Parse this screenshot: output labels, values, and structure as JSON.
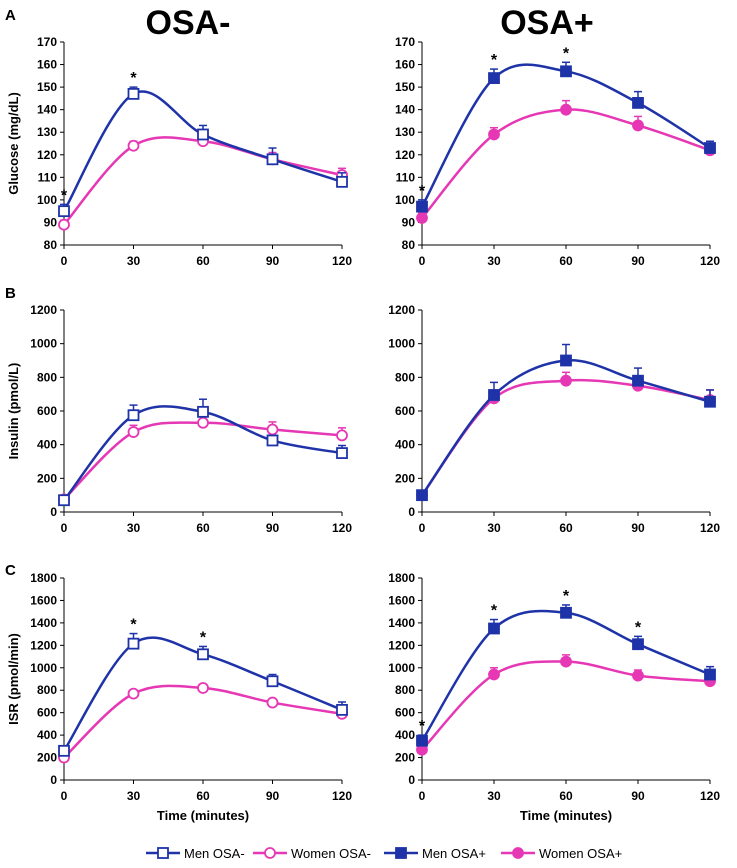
{
  "figure": {
    "column_titles": [
      "OSA-",
      "OSA+"
    ],
    "panel_letters": [
      "A",
      "B",
      "C"
    ]
  },
  "colors": {
    "men": "#1f33a8",
    "women": "#e637b4"
  },
  "legend": [
    {
      "label": "Men OSA-",
      "series": "men",
      "marker": "square",
      "filled": false
    },
    {
      "label": "Women OSA-",
      "series": "women",
      "marker": "circle",
      "filled": false
    },
    {
      "label": "Men OSA+",
      "series": "men",
      "marker": "square",
      "filled": true
    },
    {
      "label": "Women OSA+",
      "series": "women",
      "marker": "circle",
      "filled": true
    }
  ],
  "chart_data": [
    {
      "id": "glucose-osa-minus",
      "type": "line",
      "row": 0,
      "col": 0,
      "title": "OSA-",
      "xlabel": "",
      "ylabel": "Glucose (mg/dL)",
      "x": [
        0,
        30,
        60,
        90,
        120
      ],
      "xlim": [
        0,
        120
      ],
      "ylim": [
        80,
        170
      ],
      "yticks": [
        80,
        90,
        100,
        110,
        120,
        130,
        140,
        150,
        160,
        170
      ],
      "series": [
        {
          "name": "Men OSA-",
          "values": [
            95,
            147,
            129,
            118,
            108
          ],
          "errors": [
            3,
            3,
            4,
            5,
            4
          ],
          "marker": "square",
          "filled": false,
          "color": "#1f33a8"
        },
        {
          "name": "Women OSA-",
          "values": [
            89,
            124,
            126,
            118,
            111
          ],
          "errors": [
            2,
            2,
            3,
            3,
            3
          ],
          "marker": "circle",
          "filled": false,
          "color": "#e637b4"
        }
      ],
      "significance": [
        0,
        30
      ]
    },
    {
      "id": "glucose-osa-plus",
      "type": "line",
      "row": 0,
      "col": 1,
      "title": "OSA+",
      "xlabel": "",
      "ylabel": "",
      "x": [
        0,
        30,
        60,
        90,
        120
      ],
      "xlim": [
        0,
        120
      ],
      "ylim": [
        80,
        170
      ],
      "yticks": [
        80,
        90,
        100,
        110,
        120,
        130,
        140,
        150,
        160,
        170
      ],
      "series": [
        {
          "name": "Men OSA+",
          "values": [
            97,
            154,
            157,
            143,
            123
          ],
          "errors": [
            3,
            4,
            4,
            5,
            3
          ],
          "marker": "square",
          "filled": true,
          "color": "#1f33a8"
        },
        {
          "name": "Women OSA+",
          "values": [
            92,
            129,
            140,
            133,
            122
          ],
          "errors": [
            2,
            3,
            4,
            4,
            3
          ],
          "marker": "circle",
          "filled": true,
          "color": "#e637b4"
        }
      ],
      "significance": [
        0,
        30,
        60
      ]
    },
    {
      "id": "insulin-osa-minus",
      "type": "line",
      "row": 1,
      "col": 0,
      "title": "",
      "xlabel": "",
      "ylabel": "Insulin (pmol/L)",
      "x": [
        0,
        30,
        60,
        90,
        120
      ],
      "xlim": [
        0,
        120
      ],
      "ylim": [
        0,
        1200
      ],
      "yticks": [
        0,
        200,
        400,
        600,
        800,
        1000,
        1200
      ],
      "series": [
        {
          "name": "Men OSA-",
          "values": [
            70,
            575,
            595,
            425,
            350
          ],
          "errors": [
            20,
            60,
            75,
            30,
            45
          ],
          "marker": "square",
          "filled": false,
          "color": "#1f33a8"
        },
        {
          "name": "Women OSA-",
          "values": [
            75,
            475,
            530,
            490,
            455
          ],
          "errors": [
            15,
            40,
            40,
            45,
            45
          ],
          "marker": "circle",
          "filled": false,
          "color": "#e637b4"
        }
      ],
      "significance": []
    },
    {
      "id": "insulin-osa-plus",
      "type": "line",
      "row": 1,
      "col": 1,
      "title": "",
      "xlabel": "",
      "ylabel": "",
      "x": [
        0,
        30,
        60,
        90,
        120
      ],
      "xlim": [
        0,
        120
      ],
      "ylim": [
        0,
        1200
      ],
      "yticks": [
        0,
        200,
        400,
        600,
        800,
        1000,
        1200
      ],
      "series": [
        {
          "name": "Men OSA+",
          "values": [
            100,
            695,
            900,
            780,
            655
          ],
          "errors": [
            15,
            75,
            95,
            75,
            70
          ],
          "marker": "square",
          "filled": true,
          "color": "#1f33a8"
        },
        {
          "name": "Women OSA+",
          "values": [
            100,
            675,
            780,
            750,
            665
          ],
          "errors": [
            15,
            50,
            50,
            40,
            60
          ],
          "marker": "circle",
          "filled": true,
          "color": "#e637b4"
        }
      ],
      "significance": []
    },
    {
      "id": "isr-osa-minus",
      "type": "line",
      "row": 2,
      "col": 0,
      "title": "",
      "xlabel": "Time (minutes)",
      "ylabel": "ISR (pmol/min)",
      "x": [
        0,
        30,
        60,
        90,
        120
      ],
      "xlim": [
        0,
        120
      ],
      "ylim": [
        0,
        1800
      ],
      "yticks": [
        0,
        200,
        400,
        600,
        800,
        1000,
        1200,
        1400,
        1600,
        1800
      ],
      "series": [
        {
          "name": "Men OSA-",
          "values": [
            260,
            1215,
            1120,
            880,
            625
          ],
          "errors": [
            40,
            90,
            70,
            60,
            70
          ],
          "marker": "square",
          "filled": false,
          "color": "#1f33a8"
        },
        {
          "name": "Women OSA-",
          "values": [
            200,
            770,
            820,
            690,
            590
          ],
          "errors": [
            25,
            30,
            30,
            25,
            30
          ],
          "marker": "circle",
          "filled": false,
          "color": "#e637b4"
        }
      ],
      "significance": [
        30,
        60
      ]
    },
    {
      "id": "isr-osa-plus",
      "type": "line",
      "row": 2,
      "col": 1,
      "title": "",
      "xlabel": "Time (minutes)",
      "ylabel": "",
      "x": [
        0,
        30,
        60,
        90,
        120
      ],
      "xlim": [
        0,
        120
      ],
      "ylim": [
        0,
        1800
      ],
      "yticks": [
        0,
        200,
        400,
        600,
        800,
        1000,
        1200,
        1400,
        1600,
        1800
      ],
      "series": [
        {
          "name": "Men OSA+",
          "values": [
            350,
            1350,
            1490,
            1210,
            940
          ],
          "errors": [
            50,
            80,
            70,
            70,
            70
          ],
          "marker": "square",
          "filled": true,
          "color": "#1f33a8"
        },
        {
          "name": "Women OSA+",
          "values": [
            270,
            940,
            1055,
            930,
            880
          ],
          "errors": [
            30,
            60,
            60,
            50,
            40
          ],
          "marker": "circle",
          "filled": true,
          "color": "#e637b4"
        }
      ],
      "significance": [
        0,
        30,
        60,
        90
      ]
    }
  ]
}
